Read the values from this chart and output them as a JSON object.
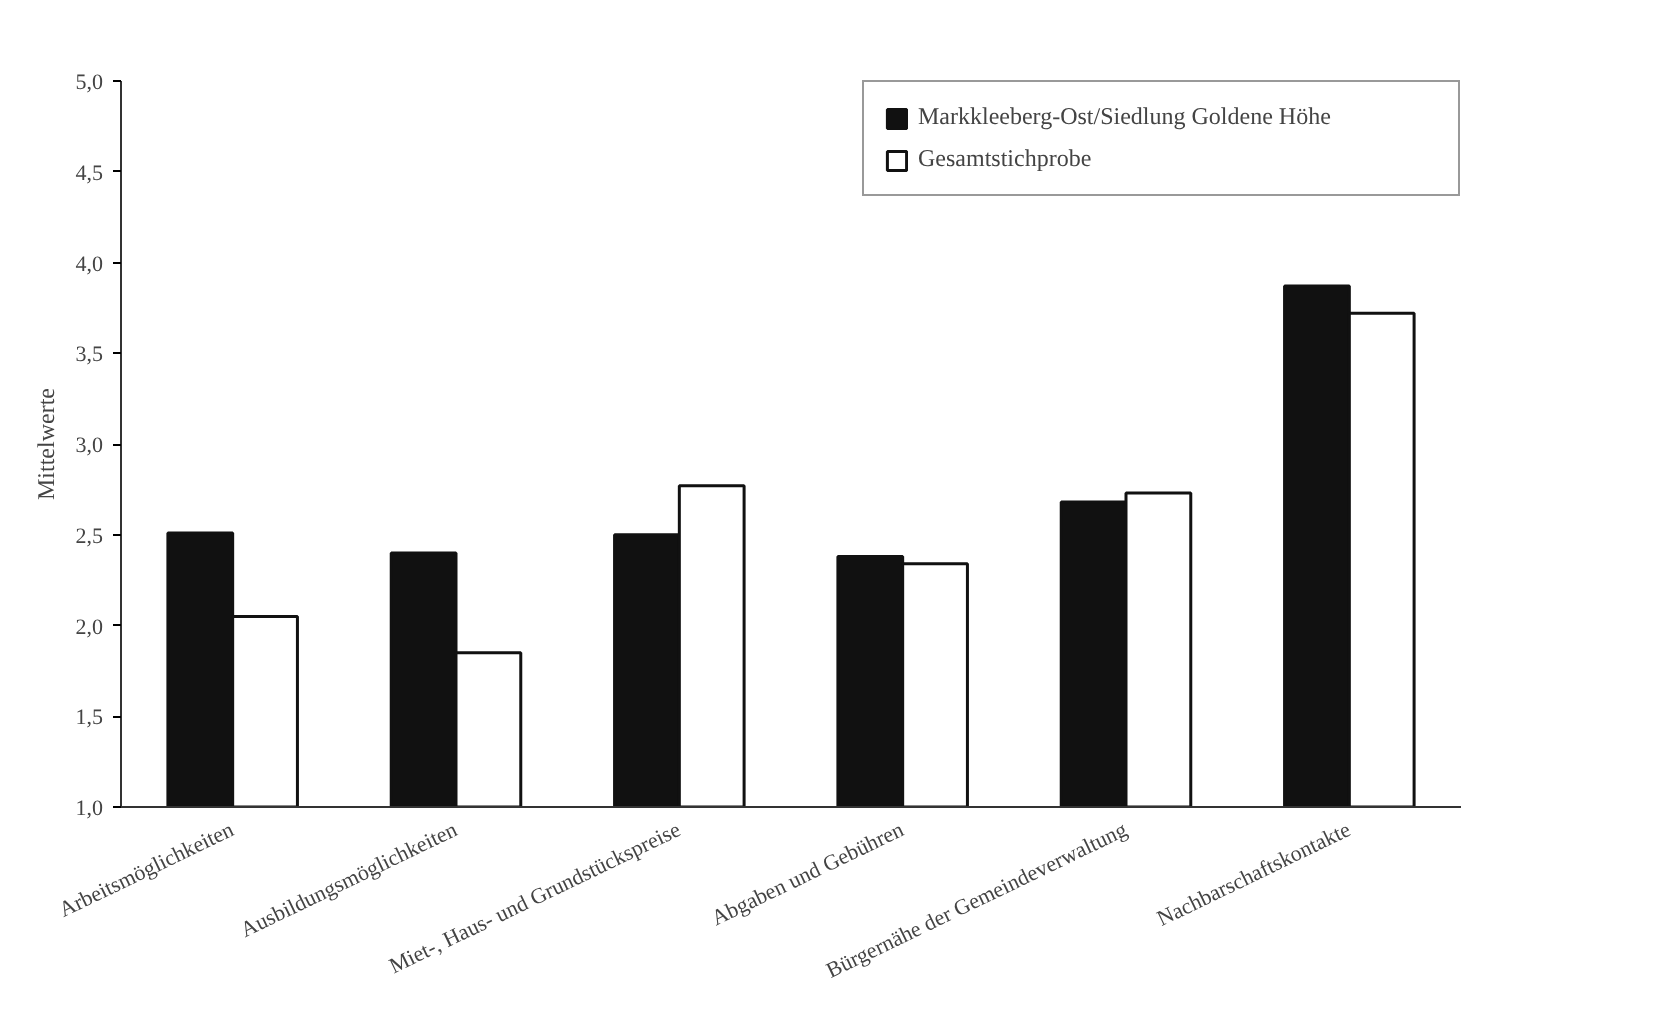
{
  "chart_data": {
    "type": "bar",
    "ylabel": "Mittelwerte",
    "categories": [
      "Arbeitsmöglichkeiten",
      "Ausbildungsmöglichkeiten",
      "Miet-, Haus- und Grundstückspreise",
      "Abgaben und Gebühren",
      "Bürgernähe der Gemeindeverwaltung",
      "Nachbarschaftskontakte"
    ],
    "series": [
      {
        "name": "Markkleeberg-Ost/Siedlung Goldene Höhe",
        "color": "#111111",
        "values": [
          2.51,
          2.4,
          2.5,
          2.38,
          2.68,
          3.87
        ]
      },
      {
        "name": "Gesamtstichprobe",
        "color": "#ffffff",
        "values": [
          2.05,
          1.85,
          2.77,
          2.34,
          2.73,
          3.72
        ]
      }
    ],
    "ylim": [
      1.0,
      5.0
    ],
    "yticks": [
      {
        "value": 1.0,
        "label": "1,0"
      },
      {
        "value": 1.5,
        "label": "1,5"
      },
      {
        "value": 2.0,
        "label": "2,0"
      },
      {
        "value": 2.5,
        "label": "2,5"
      },
      {
        "value": 3.0,
        "label": "3,0"
      },
      {
        "value": 3.5,
        "label": "3,5"
      },
      {
        "value": 4.0,
        "label": "4,0"
      },
      {
        "value": 4.5,
        "label": "4,5"
      },
      {
        "value": 5.0,
        "label": "5,0"
      }
    ],
    "grid": false,
    "legend": "top right"
  }
}
